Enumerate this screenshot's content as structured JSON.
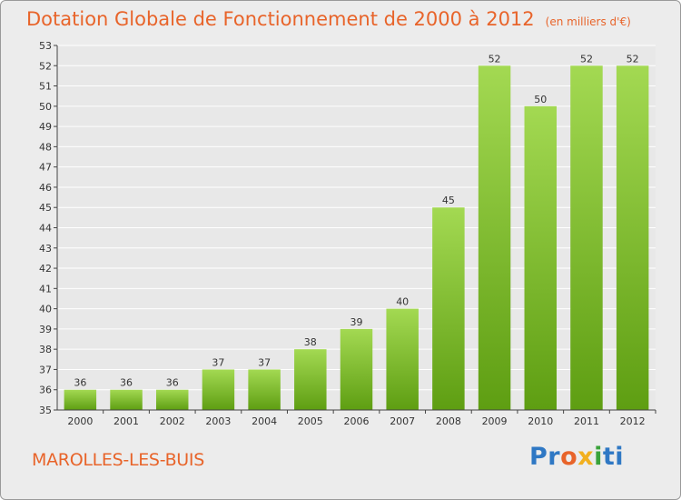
{
  "header": {
    "title": "Dotation Globale de Fonctionnement de 2000 à 2012",
    "unit": "(en milliers d'€)"
  },
  "footer": {
    "town": "MAROLLES-LES-BUIS",
    "logo_parts": [
      "Pr",
      "o",
      "x",
      "i",
      "ti"
    ]
  },
  "colors": {
    "bar_top": "#a3d952",
    "bar_bottom": "#5e9e12",
    "grid": "#ffffff",
    "title": "#e8642a"
  },
  "chart_data": {
    "type": "bar",
    "title": "Dotation Globale de Fonctionnement de 2000 à 2012",
    "xlabel": "",
    "ylabel": "",
    "categories": [
      "2000",
      "2001",
      "2002",
      "2003",
      "2004",
      "2005",
      "2006",
      "2007",
      "2008",
      "2009",
      "2010",
      "2011",
      "2012"
    ],
    "values": [
      36,
      36,
      36,
      37,
      37,
      38,
      39,
      40,
      45,
      52,
      50,
      52,
      52
    ],
    "ylim": [
      35,
      53
    ],
    "yticks": [
      35,
      36,
      37,
      38,
      39,
      40,
      41,
      42,
      43,
      44,
      45,
      46,
      47,
      48,
      49,
      50,
      51,
      52,
      53
    ],
    "grid": true,
    "legend": "none"
  }
}
